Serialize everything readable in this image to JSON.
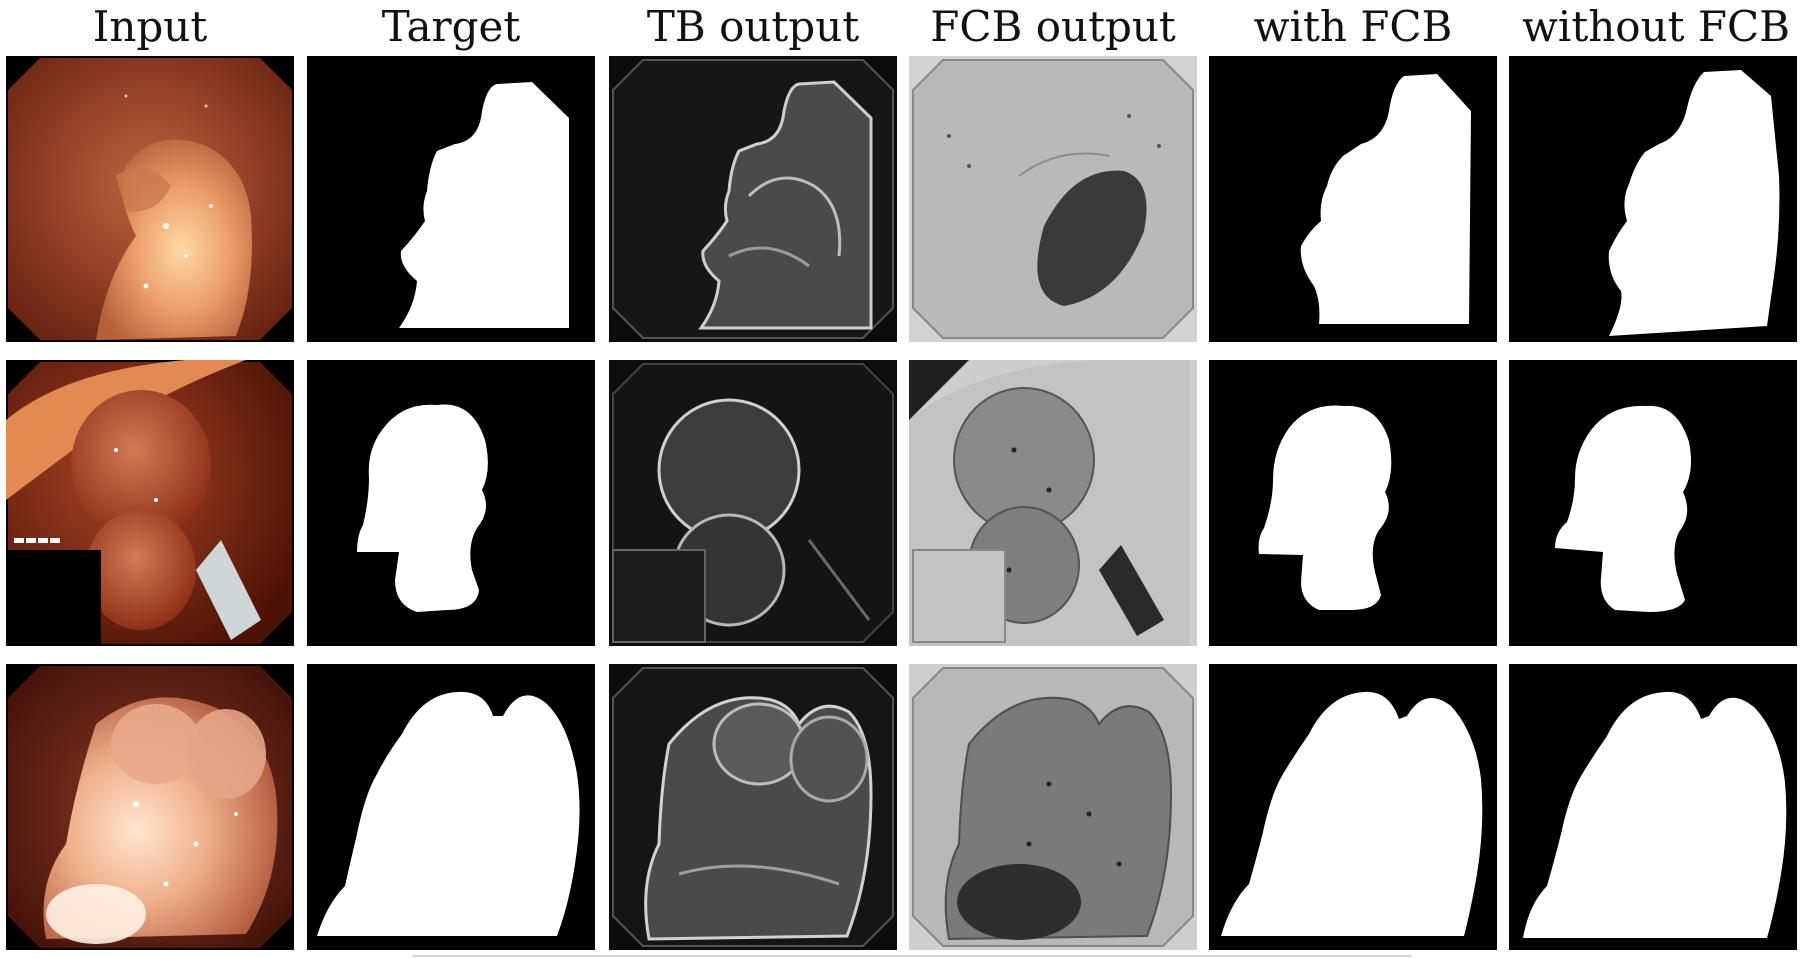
{
  "figure": {
    "columns": [
      {
        "key": "input",
        "title": "Input"
      },
      {
        "key": "target",
        "title": "Target"
      },
      {
        "key": "tb",
        "title": "TB output"
      },
      {
        "key": "fcb",
        "title": "FCB output"
      },
      {
        "key": "with",
        "title": "with FCB"
      },
      {
        "key": "without",
        "title": "without FCB"
      }
    ],
    "rows": [
      {
        "key": "row-1"
      },
      {
        "key": "row-2"
      },
      {
        "key": "row-3"
      }
    ],
    "colors": {
      "mask_foreground": "#ffffff",
      "mask_background": "#000000",
      "tissue": "#b5523a",
      "polyp": "#e9a377",
      "tb_dark": "#161616",
      "fcb_gray": "#b9b9b9"
    }
  }
}
